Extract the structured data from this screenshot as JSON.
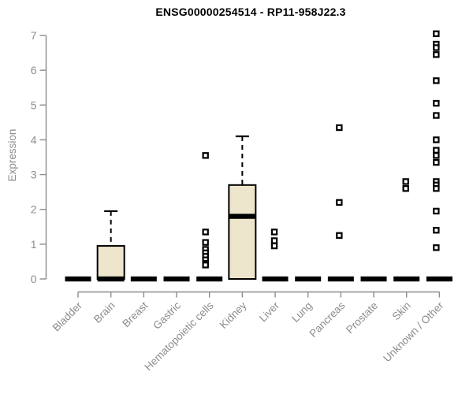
{
  "chart_data": {
    "type": "boxplot",
    "title": "ENSG00000254514 - RP11-958J22.3",
    "ylabel": "Expression",
    "xlabel": "",
    "ylim": [
      0,
      7
    ],
    "yticks": [
      0,
      1,
      2,
      3,
      4,
      5,
      6,
      7
    ],
    "grid": false,
    "legend": false,
    "categories": [
      "Bladder",
      "Brain",
      "Breast",
      "Gastric",
      "Hematopoietic cells",
      "Kidney",
      "Liver",
      "Lung",
      "Pancreas",
      "Prostate",
      "Skin",
      "Unknown / Other"
    ],
    "boxes": [
      {
        "category": "Bladder",
        "low": 0,
        "q1": 0,
        "median": 0,
        "q3": 0,
        "high": 0,
        "outlier_dx": 0,
        "outliers": []
      },
      {
        "category": "Brain",
        "low": 0,
        "q1": 0,
        "median": 0,
        "q3": 0.95,
        "high": 1.95,
        "outlier_dx": 0,
        "outliers": []
      },
      {
        "category": "Breast",
        "low": 0,
        "q1": 0,
        "median": 0,
        "q3": 0,
        "high": 0,
        "outlier_dx": 0,
        "outliers": []
      },
      {
        "category": "Gastric",
        "low": 0,
        "q1": 0,
        "median": 0,
        "q3": 0,
        "high": 0,
        "outlier_dx": 0,
        "outliers": []
      },
      {
        "category": "Hematopoietic cells",
        "low": 0,
        "q1": 0,
        "median": 0,
        "q3": 0,
        "high": 0,
        "outlier_dx": -5,
        "outliers": [
          3.55,
          1.35,
          1.05,
          0.85,
          0.75,
          0.65,
          0.55,
          0.45,
          0.4
        ]
      },
      {
        "category": "Kidney",
        "low": 0,
        "q1": 0,
        "median": 1.8,
        "q3": 2.7,
        "high": 4.1,
        "outlier_dx": 0,
        "outliers": []
      },
      {
        "category": "Liver",
        "low": 0,
        "q1": 0,
        "median": 0,
        "q3": 0,
        "high": 0,
        "outlier_dx": -1,
        "outliers": [
          1.35,
          1.1,
          0.95
        ]
      },
      {
        "category": "Lung",
        "low": 0,
        "q1": 0,
        "median": 0,
        "q3": 0,
        "high": 0,
        "outlier_dx": 0,
        "outliers": []
      },
      {
        "category": "Pancreas",
        "low": 0,
        "q1": 0,
        "median": 0,
        "q3": 0,
        "high": 0,
        "outlier_dx": -2,
        "outliers": [
          4.35,
          2.2,
          1.25
        ]
      },
      {
        "category": "Prostate",
        "low": 0,
        "q1": 0,
        "median": 0,
        "q3": 0,
        "high": 0,
        "outlier_dx": 0,
        "outliers": []
      },
      {
        "category": "Skin",
        "low": 0,
        "q1": 0,
        "median": 0,
        "q3": 0,
        "high": 0,
        "outlier_dx": -1,
        "outliers": [
          2.8,
          2.6
        ]
      },
      {
        "category": "Unknown / Other",
        "low": 0,
        "q1": 0,
        "median": 0,
        "q3": 0,
        "high": 0,
        "outlier_dx": -4,
        "outliers": [
          7.05,
          6.75,
          6.65,
          6.45,
          5.7,
          5.05,
          4.7,
          4.0,
          3.7,
          3.55,
          3.35,
          2.8,
          2.7,
          2.6,
          1.95,
          1.4,
          0.9
        ]
      }
    ],
    "colors": {
      "box_fill": "#EEE6CC",
      "box_stroke": "#000000",
      "axis": "#8c8c8c",
      "title": "#000000",
      "background": "#ffffff"
    }
  }
}
